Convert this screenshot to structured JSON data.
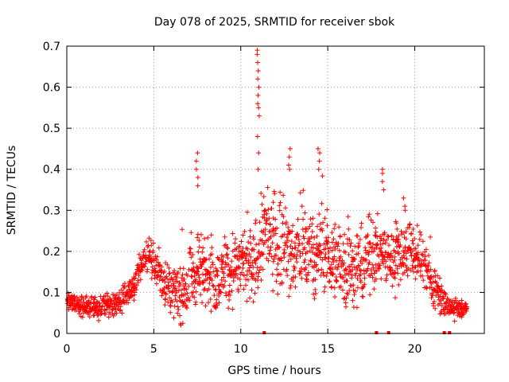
{
  "chart_data": {
    "type": "scatter",
    "title": "Day 078 of 2025, SRMTID for receiver sbok",
    "xlabel": "GPS time / hours",
    "ylabel": "SRMTID / TECUs",
    "xlim": [
      0,
      24
    ],
    "ylim": [
      0,
      0.7
    ],
    "xticks": [
      0,
      5,
      10,
      15,
      20
    ],
    "xtick_labels": [
      "0",
      "5",
      "10",
      "15",
      "20"
    ],
    "yticks": [
      0,
      0.1,
      0.2,
      0.3,
      0.4,
      0.5,
      0.6,
      0.7
    ],
    "ytick_labels": [
      "0",
      "0.1",
      "0.2",
      "0.3",
      "0.4",
      "0.5",
      "0.6",
      "0.7"
    ],
    "grid": true,
    "marker": "plus",
    "series_color": "#ff0000",
    "profile": [
      [
        0.0,
        0.075
      ],
      [
        1.0,
        0.07
      ],
      [
        2.0,
        0.065
      ],
      [
        3.0,
        0.075
      ],
      [
        3.6,
        0.1
      ],
      [
        4.0,
        0.13
      ],
      [
        4.5,
        0.19
      ],
      [
        5.0,
        0.18
      ],
      [
        5.5,
        0.13
      ],
      [
        6.0,
        0.11
      ],
      [
        6.7,
        0.1
      ],
      [
        7.5,
        0.15
      ],
      [
        8.0,
        0.17
      ],
      [
        8.5,
        0.12
      ],
      [
        9.0,
        0.15
      ],
      [
        10.0,
        0.17
      ],
      [
        10.8,
        0.16
      ],
      [
        11.3,
        0.25
      ],
      [
        12.0,
        0.22
      ],
      [
        13.0,
        0.2
      ],
      [
        14.0,
        0.19
      ],
      [
        15.0,
        0.2
      ],
      [
        16.0,
        0.16
      ],
      [
        17.0,
        0.16
      ],
      [
        17.5,
        0.2
      ],
      [
        18.0,
        0.2
      ],
      [
        18.5,
        0.18
      ],
      [
        19.0,
        0.19
      ],
      [
        19.5,
        0.2
      ],
      [
        20.0,
        0.19
      ],
      [
        20.5,
        0.17
      ],
      [
        21.0,
        0.12
      ],
      [
        21.5,
        0.09
      ],
      [
        22.0,
        0.06
      ],
      [
        23.0,
        0.06
      ]
    ],
    "spread": [
      [
        0.0,
        0.02
      ],
      [
        3.5,
        0.03
      ],
      [
        4.5,
        0.04
      ],
      [
        7.0,
        0.07
      ],
      [
        10.5,
        0.08
      ],
      [
        12.0,
        0.1
      ],
      [
        15.0,
        0.08
      ],
      [
        18.0,
        0.08
      ],
      [
        20.5,
        0.06
      ],
      [
        22.0,
        0.02
      ],
      [
        23.0,
        0.02
      ]
    ],
    "peaks": [
      {
        "x": 7.5,
        "values": [
          0.44,
          0.42,
          0.4,
          0.38,
          0.36
        ]
      },
      {
        "x": 11.0,
        "values": [
          0.69,
          0.68,
          0.66,
          0.64,
          0.62,
          0.6,
          0.58,
          0.56,
          0.55,
          0.53,
          0.48,
          0.44,
          0.4
        ]
      },
      {
        "x": 12.8,
        "values": [
          0.45,
          0.43,
          0.41,
          0.4
        ]
      },
      {
        "x": 14.5,
        "values": [
          0.45,
          0.44,
          0.42,
          0.4
        ]
      },
      {
        "x": 18.2,
        "values": [
          0.4,
          0.39,
          0.37,
          0.35
        ]
      },
      {
        "x": 19.4,
        "values": [
          0.33,
          0.31,
          0.3
        ]
      }
    ],
    "zero_points_x": [
      11.35,
      17.8,
      18.5,
      21.7,
      22.0
    ],
    "x_end": 23.0
  }
}
